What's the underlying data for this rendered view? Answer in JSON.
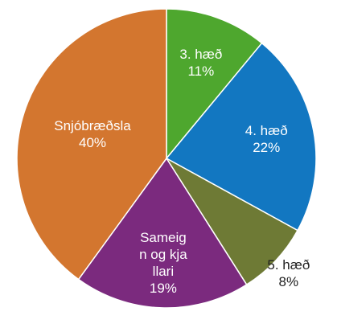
{
  "chart_data": {
    "type": "pie",
    "categories": [
      "3. hæð",
      "4. hæð",
      "5. hæð",
      "Sameign og kjallari",
      "Snjóbræðsla"
    ],
    "values": [
      11,
      22,
      8,
      19,
      40
    ],
    "value_labels": [
      "11%",
      "22%",
      "8%",
      "19%",
      "40%"
    ],
    "colors": [
      "#4ea72e",
      "#1277c1",
      "#6e7a35",
      "#7b2a7e",
      "#d3762f"
    ]
  }
}
